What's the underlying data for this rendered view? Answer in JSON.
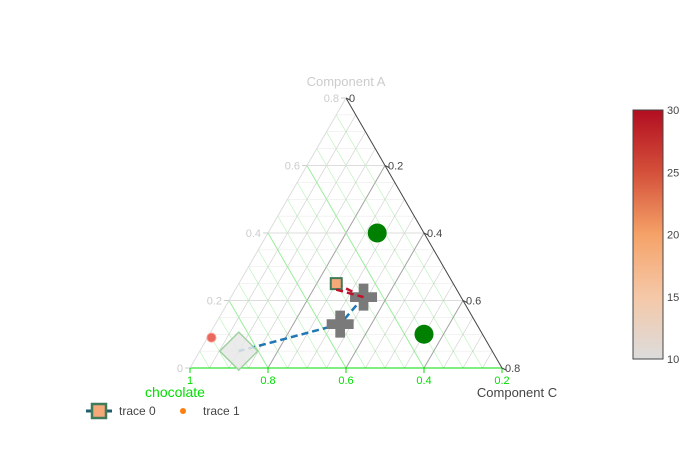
{
  "chart_data": {
    "type": "scatter",
    "subtype": "ternary",
    "sum": 1,
    "axes": {
      "a": {
        "title": "Component A",
        "range": [
          0,
          0.8
        ],
        "ticks": [
          0,
          0.2,
          0.4,
          0.6,
          0.8
        ],
        "tick_labels": [
          "0",
          "0.2",
          "0.4",
          "0.6",
          "0.8"
        ],
        "title_color": "#cccccc",
        "tick_color": "#cccccc",
        "grid_color": "#dddddd"
      },
      "b": {
        "title": "chocolate",
        "range": [
          0.2,
          1
        ],
        "ticks": [
          1,
          0.8,
          0.6,
          0.4,
          0.2
        ],
        "tick_labels": [
          "1",
          "0.8",
          "0.6",
          "0.4",
          "0.2"
        ],
        "title_color": "#00dd00",
        "tick_color": "#00dd00",
        "grid_color": "#99ee99"
      },
      "c": {
        "title": "Component C",
        "range": [
          0,
          0.8
        ],
        "ticks": [
          0.8,
          0.6,
          0.4,
          0.2,
          0
        ],
        "tick_labels": [
          "0.8",
          "0.6",
          "0.4",
          "0.2",
          "0"
        ],
        "title_color": "#444444",
        "tick_color": "#444444",
        "grid_color": "#999999"
      }
    },
    "series": [
      {
        "name": "trace 0",
        "mode": "lines+markers",
        "line_color": "#1f77b4",
        "line_dash": "dash",
        "line_color_segments": [
          "#c0122a",
          "#1f77b4",
          "#1f77b4"
        ],
        "points": [
          {
            "a": 0.25,
            "b": 0.5,
            "c": 0.25,
            "symbol": "square",
            "color_value": 16,
            "marker_color": "#f5a878",
            "border_color": "#3f7a5a"
          },
          {
            "a": 0.21,
            "b": 0.45,
            "c": 0.34,
            "symbol": "cross",
            "color_value": 13,
            "marker_color": "#7a7a7a",
            "border_color": "#7a7a7a"
          },
          {
            "a": 0.13,
            "b": 0.55,
            "c": 0.32,
            "symbol": "cross",
            "color_value": 10,
            "marker_color": "#7a7a7a",
            "border_color": "#7a7a7a"
          },
          {
            "a": 0.05,
            "b": 0.85,
            "c": 0.1,
            "symbol": "diamond",
            "color_value": 10,
            "marker_color": "#e8e8e8",
            "border_color": "#9fd19f"
          }
        ]
      },
      {
        "name": "trace 1",
        "mode": "markers",
        "points": [
          {
            "a": 0.09,
            "b": 0.9,
            "c": 0.01,
            "color": "#e8675f",
            "border_color": "#ff9a8a",
            "size": "small"
          },
          {
            "a": 0.4,
            "b": 0.32,
            "c": 0.28,
            "color": "#008000",
            "size": "large"
          },
          {
            "a": 0.1,
            "b": 0.35,
            "c": 0.55,
            "color": "#008000",
            "size": "large"
          }
        ]
      }
    ],
    "colorbar": {
      "range": [
        10,
        30
      ],
      "ticks": [
        10,
        15,
        20,
        25,
        30
      ],
      "tick_labels": [
        "10",
        "15",
        "20",
        "25",
        "30"
      ],
      "colorscale": [
        "#dcdcdc",
        "#f5c8a8",
        "#f5a268",
        "#d4503a",
        "#b20e21"
      ]
    },
    "legend": {
      "placement": "bottom-left",
      "entries": [
        "trace 0",
        "trace 1"
      ]
    }
  }
}
